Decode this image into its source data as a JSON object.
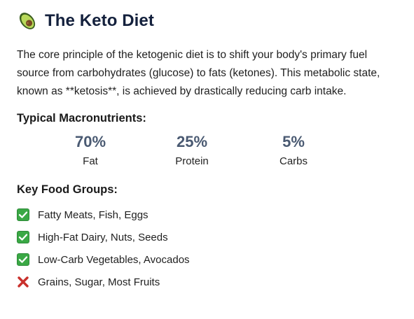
{
  "header": {
    "icon": "avocado-icon",
    "title": "The Keto Diet"
  },
  "intro": "The core principle of the ketogenic diet is to shift your body's primary fuel source from carbohydrates (glucose) to fats (ketones). This metabolic state, known as **ketosis**, is achieved by drastically reducing carb intake.",
  "macros": {
    "heading": "Typical Macronutrients:",
    "items": [
      {
        "value": "70%",
        "label": "Fat"
      },
      {
        "value": "25%",
        "label": "Protein"
      },
      {
        "value": "5%",
        "label": "Carbs"
      }
    ]
  },
  "foods": {
    "heading": "Key Food Groups:",
    "items": [
      {
        "text": "Fatty Meats, Fish, Eggs",
        "icon": "check-mark-icon"
      },
      {
        "text": "High-Fat Dairy, Nuts, Seeds",
        "icon": "check-mark-icon"
      },
      {
        "text": "Low-Carb Vegetables, Avocados",
        "icon": "check-mark-icon"
      },
      {
        "text": "Grains, Sugar, Most Fruits",
        "icon": "cross-mark-icon"
      }
    ]
  },
  "colors": {
    "title": "#14213d",
    "macro_value": "#4a5a72",
    "check_green": "#3aa845",
    "cross_red": "#c9302c"
  }
}
